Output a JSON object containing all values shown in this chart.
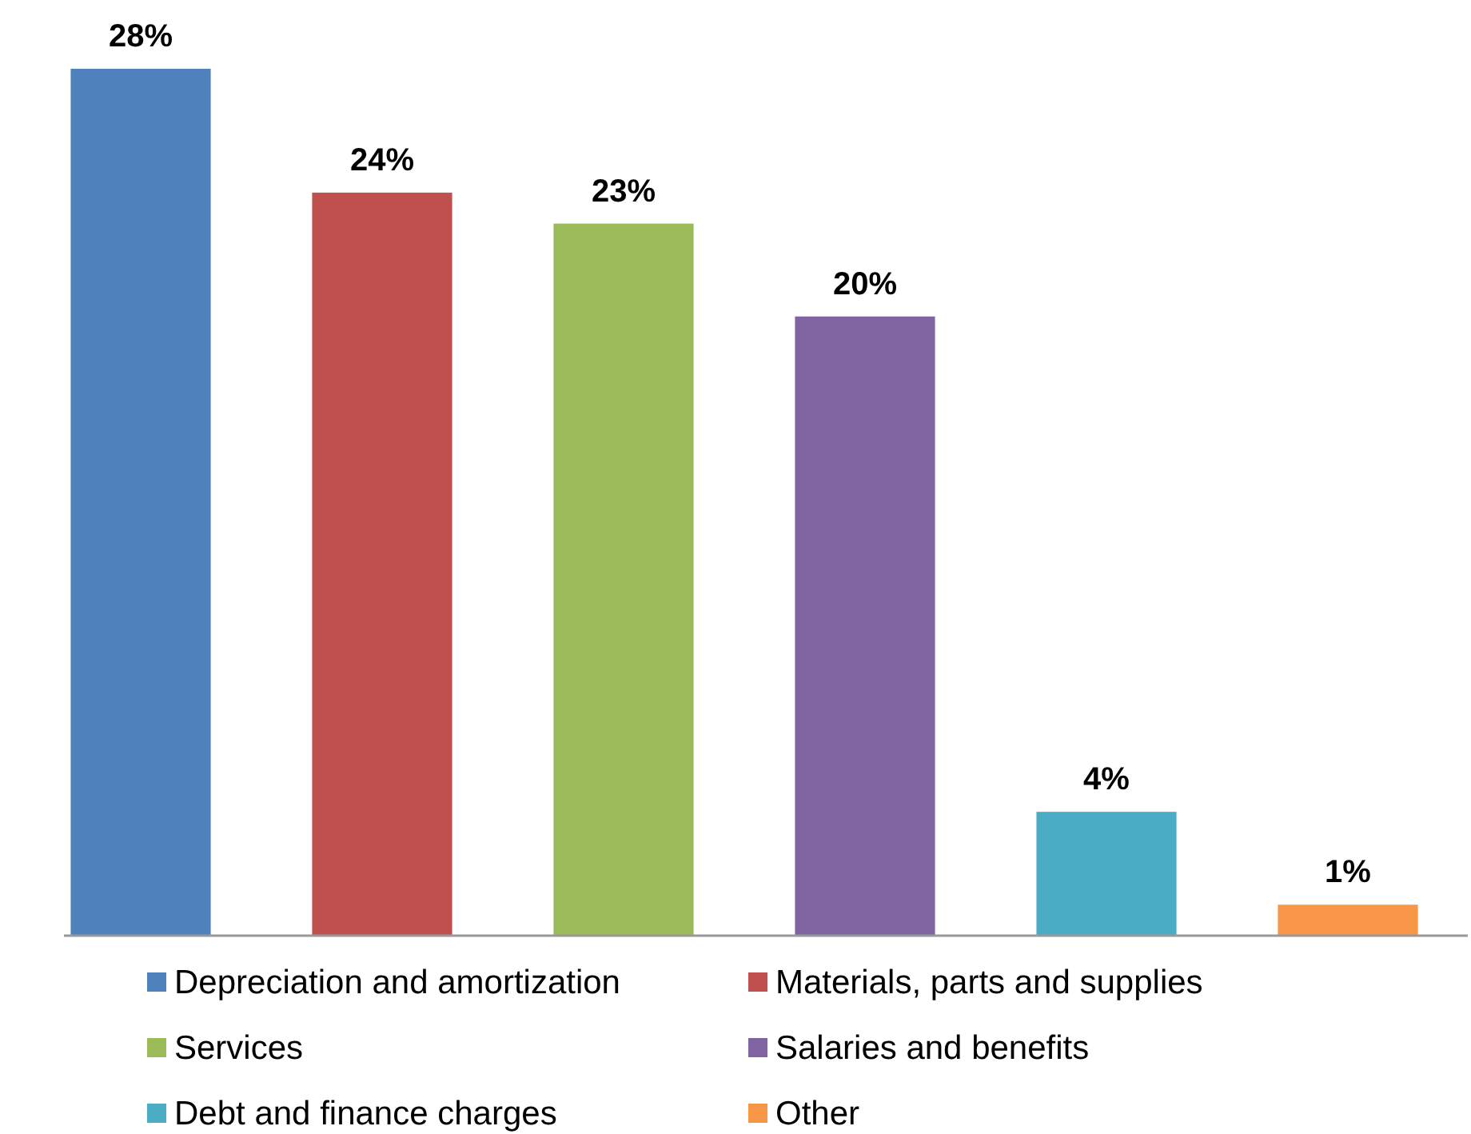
{
  "chart_data": {
    "type": "bar",
    "categories": [
      null,
      null,
      null,
      null,
      null,
      null
    ],
    "series": [
      {
        "name": "Depreciation and amortization",
        "color": "#4f81bd",
        "values": [
          28,
          null,
          null,
          null,
          null,
          null
        ],
        "value_labels": [
          "28%",
          null,
          null,
          null,
          null,
          null
        ]
      },
      {
        "name": "Materials, parts and supplies",
        "color": "#c0504d",
        "values": [
          null,
          24,
          null,
          null,
          null,
          null
        ],
        "value_labels": [
          null,
          "24%",
          null,
          null,
          null,
          null
        ]
      },
      {
        "name": "Services",
        "color": "#9bbb59",
        "values": [
          null,
          null,
          23,
          null,
          null,
          null
        ],
        "value_labels": [
          null,
          null,
          "23%",
          null,
          null,
          null
        ]
      },
      {
        "name": "Salaries and benefits",
        "color": "#8064a2",
        "values": [
          null,
          null,
          null,
          20,
          null,
          null
        ],
        "value_labels": [
          null,
          null,
          null,
          "20%",
          null,
          null
        ]
      },
      {
        "name": "Debt and finance charges",
        "color": "#4bacc6",
        "values": [
          null,
          null,
          null,
          null,
          4,
          null
        ],
        "value_labels": [
          null,
          null,
          null,
          null,
          "4%",
          null
        ]
      },
      {
        "name": "Other",
        "color": "#f79646",
        "values": [
          null,
          null,
          null,
          null,
          null,
          1
        ],
        "value_labels": [
          null,
          null,
          null,
          null,
          null,
          "1%"
        ]
      }
    ],
    "stacked": true,
    "legend": "bottom"
  }
}
